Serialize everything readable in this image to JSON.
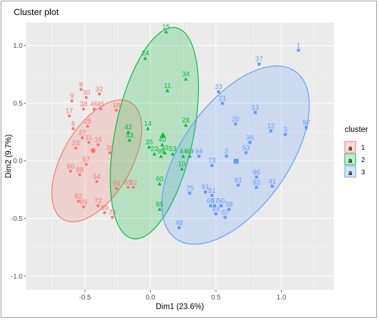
{
  "chart_data": {
    "type": "scatter",
    "title": "Cluster plot",
    "xlabel": "Dim1 (23.6%)",
    "ylabel": "Dim2 (9.7%)",
    "xlim": [
      -0.95,
      1.4
    ],
    "ylim": [
      -1.12,
      1.2
    ],
    "x_ticks": [
      -0.5,
      0.0,
      0.5,
      1.0
    ],
    "x_tick_labels": [
      "-0.5",
      "0.0",
      "0.5",
      "1.0"
    ],
    "y_ticks": [
      -1.0,
      -0.5,
      0.0,
      0.5,
      1.0
    ],
    "y_tick_labels": [
      "-1.0",
      "-0.5",
      "0.0",
      "0.5",
      "1.0"
    ],
    "grid": true,
    "legend": {
      "title": "cluster",
      "placement": "right"
    },
    "series": [
      {
        "name": "1",
        "color": "#F8766D",
        "marker": "circle",
        "ellipse": {
          "cx": -0.41,
          "cy": 0.0,
          "rx": 0.57,
          "ry": 0.27,
          "angle_deg": 65
        },
        "points": [
          {
            "label": "8",
            "x": -0.53,
            "y": 0.62
          },
          {
            "label": "9",
            "x": -0.6,
            "y": 0.52
          },
          {
            "label": "30",
            "x": -0.49,
            "y": 0.55
          },
          {
            "label": "32",
            "x": -0.39,
            "y": 0.58
          },
          {
            "label": "38",
            "x": -0.51,
            "y": 0.45
          },
          {
            "label": "46",
            "x": -0.43,
            "y": 0.45
          },
          {
            "label": "17",
            "x": -0.62,
            "y": 0.39
          },
          {
            "label": "45",
            "x": -0.38,
            "y": 0.45
          },
          {
            "label": "25",
            "x": -0.48,
            "y": 0.3
          },
          {
            "label": "6",
            "x": -0.59,
            "y": 0.28
          },
          {
            "label": "18",
            "x": -0.26,
            "y": 0.44
          },
          {
            "label": "27",
            "x": -0.52,
            "y": 0.2
          },
          {
            "label": "31",
            "x": -0.47,
            "y": 0.16
          },
          {
            "label": "16",
            "x": -0.4,
            "y": 0.14
          },
          {
            "label": "23",
            "x": -0.57,
            "y": 0.11
          },
          {
            "label": "39",
            "x": -0.31,
            "y": 0.07
          },
          {
            "label": "57",
            "x": -0.49,
            "y": -0.03
          },
          {
            "label": "60",
            "x": -0.61,
            "y": -0.09
          },
          {
            "label": "98",
            "x": -0.54,
            "y": -0.12
          },
          {
            "label": "54",
            "x": -0.41,
            "y": -0.18
          },
          {
            "label": "65",
            "x": -0.17,
            "y": -0.23
          },
          {
            "label": "52",
            "x": -0.13,
            "y": -0.23
          },
          {
            "label": "56",
            "x": -0.26,
            "y": -0.24
          },
          {
            "label": "62",
            "x": -0.55,
            "y": -0.35
          },
          {
            "label": "72",
            "x": -0.4,
            "y": -0.39
          },
          {
            "label": "69",
            "x": -0.51,
            "y": -0.4
          },
          {
            "label": "59",
            "x": -0.35,
            "y": -0.45
          },
          {
            "label": "74",
            "x": -0.29,
            "y": -0.49
          }
        ]
      },
      {
        "name": "2",
        "color": "#00BA38",
        "marker": "triangle",
        "ellipse": {
          "cx": 0.03,
          "cy": 0.24,
          "rx": 0.93,
          "ry": 0.3,
          "angle_deg": 80
        },
        "points": [
          {
            "label": "15",
            "x": 0.12,
            "y": 1.12
          },
          {
            "label": "24",
            "x": -0.04,
            "y": 0.89
          },
          {
            "label": "34",
            "x": 0.27,
            "y": 0.71
          },
          {
            "label": "11",
            "x": 0.13,
            "y": 0.61
          },
          {
            "label": "14",
            "x": -0.02,
            "y": 0.28
          },
          {
            "label": "28",
            "x": 0.27,
            "y": 0.31
          },
          {
            "label": "42",
            "x": -0.17,
            "y": 0.25
          },
          {
            "label": "43",
            "x": -0.16,
            "y": 0.18
          },
          {
            "label": "35",
            "x": -0.01,
            "y": 0.12
          },
          {
            "label": "40",
            "x": 0.09,
            "y": 0.14
          },
          {
            "label": "22",
            "x": 0.03,
            "y": 0.06
          },
          {
            "label": "33",
            "x": 0.11,
            "y": 0.07
          },
          {
            "label": "99",
            "x": 0.08,
            "y": 0.04
          },
          {
            "label": "53",
            "x": 0.17,
            "y": 0.06
          },
          {
            "label": "44",
            "x": 0.25,
            "y": 0.04
          },
          {
            "label": "49",
            "x": 0.3,
            "y": 0.04
          },
          {
            "label": "10",
            "x": 0.24,
            "y": -0.07
          },
          {
            "label": "60",
            "x": 0.07,
            "y": -0.2
          },
          {
            "label": "85",
            "x": 0.07,
            "y": -0.42
          }
        ]
      },
      {
        "name": "3",
        "color": "#619CFF",
        "marker": "square",
        "ellipse": {
          "cx": 0.65,
          "cy": 0.05,
          "rx": 0.86,
          "ry": 0.42,
          "angle_deg": 60
        },
        "points": [
          {
            "label": "1",
            "x": 1.13,
            "y": 0.96
          },
          {
            "label": "37",
            "x": 0.83,
            "y": 0.84
          },
          {
            "label": "33",
            "x": 0.52,
            "y": 0.6
          },
          {
            "label": "21",
            "x": 0.55,
            "y": 0.5
          },
          {
            "label": "13",
            "x": 0.8,
            "y": 0.42
          },
          {
            "label": "20",
            "x": 0.65,
            "y": 0.32
          },
          {
            "label": "12",
            "x": 0.92,
            "y": 0.26
          },
          {
            "label": "97",
            "x": 1.19,
            "y": 0.29
          },
          {
            "label": "3",
            "x": 1.03,
            "y": 0.23
          },
          {
            "label": "36",
            "x": 0.76,
            "y": 0.16
          },
          {
            "label": "53",
            "x": 0.73,
            "y": 0.07
          },
          {
            "label": "2",
            "x": 0.58,
            "y": 0.04
          },
          {
            "label": "94",
            "x": 0.37,
            "y": 0.04
          },
          {
            "label": "73",
            "x": 0.47,
            "y": -0.04
          },
          {
            "label": "96",
            "x": 0.81,
            "y": -0.14
          },
          {
            "label": "41",
            "x": 0.93,
            "y": -0.22
          },
          {
            "label": "81",
            "x": 0.67,
            "y": -0.21
          },
          {
            "label": "93",
            "x": 0.81,
            "y": -0.23
          },
          {
            "label": "75",
            "x": 0.3,
            "y": -0.28
          },
          {
            "label": "91",
            "x": 0.42,
            "y": -0.27
          },
          {
            "label": "51",
            "x": 0.47,
            "y": -0.3
          },
          {
            "label": "65",
            "x": 0.46,
            "y": -0.39
          },
          {
            "label": "47",
            "x": 0.49,
            "y": -0.39
          },
          {
            "label": "50",
            "x": 0.54,
            "y": -0.39
          },
          {
            "label": "84",
            "x": 0.5,
            "y": -0.46
          },
          {
            "label": "58",
            "x": 0.6,
            "y": -0.42
          },
          {
            "label": "67",
            "x": 0.57,
            "y": -0.49
          },
          {
            "label": "48",
            "x": 0.22,
            "y": -0.58
          }
        ]
      }
    ]
  }
}
